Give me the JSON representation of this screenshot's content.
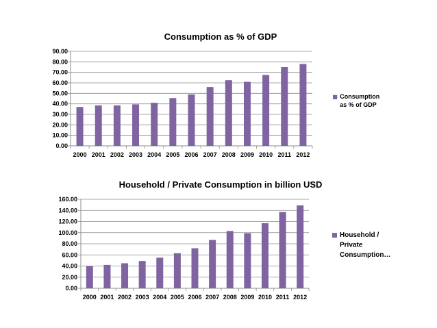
{
  "chart_data": [
    {
      "type": "bar",
      "title": "Consumption as % of GDP",
      "categories": [
        "2000",
        "2001",
        "2002",
        "2003",
        "2004",
        "2005",
        "2006",
        "2007",
        "2008",
        "2009",
        "2010",
        "2011",
        "2012"
      ],
      "series": [
        {
          "name": "Consumption as % of GDP",
          "values": [
            37,
            38.5,
            38.5,
            39.5,
            41,
            45.5,
            49,
            56,
            62.5,
            61,
            67.5,
            75,
            78
          ]
        }
      ],
      "ylim": [
        0,
        90
      ],
      "ytick_labels": [
        "0.00",
        "10.00",
        "20.00",
        "30.00",
        "40.00",
        "50.00",
        "60.00",
        "70.00",
        "80.00",
        "90.00"
      ],
      "legend_lines": [
        "Consumption",
        "as % of GDP"
      ],
      "legend_position": "right",
      "grid": true,
      "color": "#8064A2"
    },
    {
      "type": "bar",
      "title": "Household / Private Consumption in billion USD",
      "categories": [
        "2000",
        "2001",
        "2002",
        "2003",
        "2004",
        "2005",
        "2006",
        "2007",
        "2008",
        "2009",
        "2010",
        "2011",
        "2012"
      ],
      "series": [
        {
          "name": "Household / Private Consumption…",
          "values": [
            40,
            42,
            45,
            49,
            55,
            63,
            72,
            87,
            103,
            99,
            117,
            137,
            149
          ]
        }
      ],
      "ylim": [
        0,
        160
      ],
      "ytick_labels": [
        "0.00",
        "20.00",
        "40.00",
        "60.00",
        "80.00",
        "100.00",
        "120.00",
        "140.00",
        "160.00"
      ],
      "legend_lines": [
        "Household /",
        "Private",
        "Consumption…"
      ],
      "legend_position": "right",
      "grid": true,
      "color": "#8064A2"
    }
  ]
}
